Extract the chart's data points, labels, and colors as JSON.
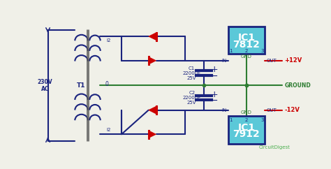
{
  "bg_color": "#f0f0e8",
  "wire_blue": "#1a237e",
  "wire_green": "#2e7d32",
  "wire_red": "#cc0000",
  "ic_fill": "#5bc8d8",
  "ic_border": "#1a237e",
  "diode_color": "#cc0000",
  "text_dark": "#1a237e",
  "text_red": "#cc0000",
  "text_green": "#2e7d32",
  "label_230v": "230V\nAC",
  "label_t1": "T1",
  "label_i2": "I2",
  "label_0": "0",
  "label_c1": "C1\n2200μF\n25V",
  "label_c2": "C2\n2200μF\n25V",
  "label_7812": "IC1\n7812",
  "label_7912": "IC1\n7912",
  "label_in": "IN",
  "label_out": "OUT",
  "label_gnd": "GND",
  "label_ground": "GROUND",
  "label_pos12": "+12V",
  "label_neg12": "-12V",
  "watermark": "CircuitDigest"
}
